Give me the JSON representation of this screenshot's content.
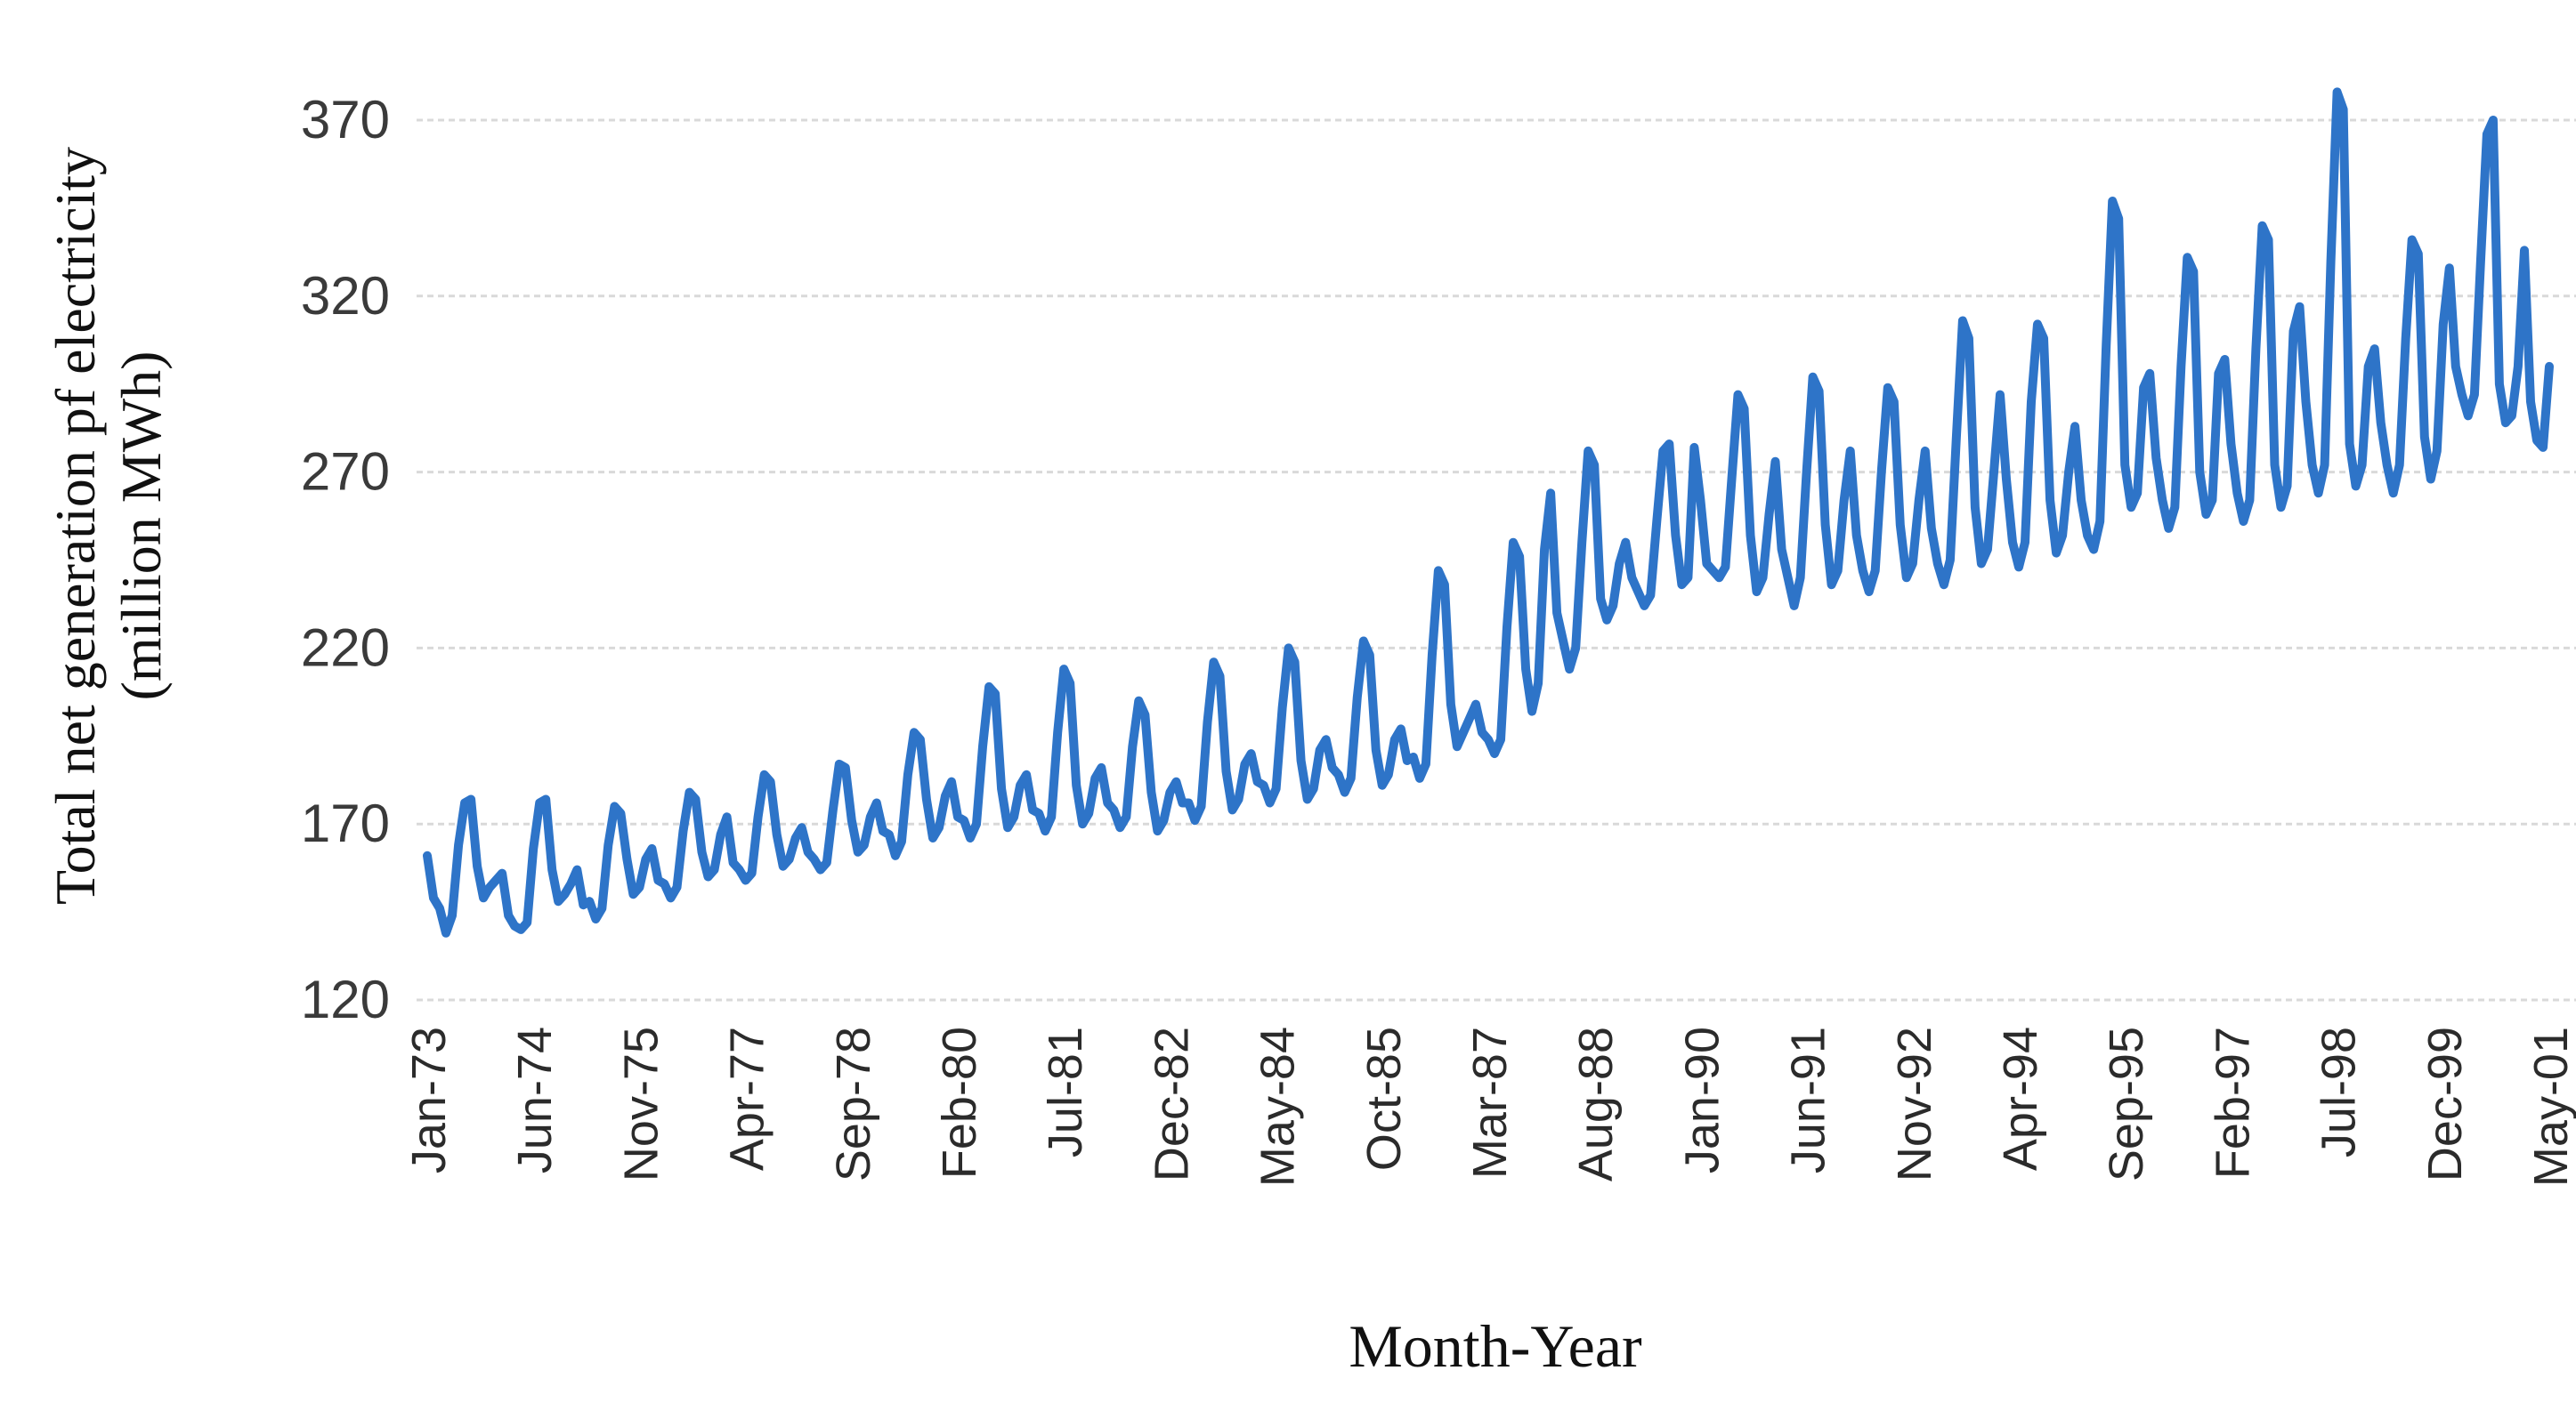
{
  "page": {
    "background_color": "#ffffff"
  },
  "style": {
    "line_color": "#2E74C8",
    "grid_color": "#D9D9D9",
    "y_tick_color": "#3a3a3a",
    "x_tick_color": "#2b2b2b",
    "title_color": "#111111"
  },
  "chart_data": {
    "type": "line",
    "title": "",
    "xlabel": "Month-Year",
    "ylabel": "Total net generation pf electricity (million MWh)",
    "ylabel_lines": [
      "Total net generation pf electricity",
      "(million MWh)"
    ],
    "legend": "none",
    "grid": "horizontal-dotted",
    "ylim": [
      120,
      380
    ],
    "y_ticks": [
      370,
      320,
      270,
      220,
      170,
      120
    ],
    "x_start": "Jan-1973",
    "x_end": "May-2001",
    "x_interval": "monthly",
    "x_tick_every_n_months": 17,
    "x_tick_labels": [
      "Jan-73",
      "Jun-74",
      "Nov-75",
      "Apr-77",
      "Sep-78",
      "Feb-80",
      "Jul-81",
      "Dec-82",
      "May-84",
      "Oct-85",
      "Mar-87",
      "Aug-88",
      "Jan-90",
      "Jun-91",
      "Nov-92",
      "Apr-94",
      "Sep-95",
      "Feb-97",
      "Jul-98",
      "Dec-99",
      "May-01"
    ],
    "series": [
      {
        "name": "Total net generation of electricity (million MWh)",
        "color": "#2E74C8",
        "values": [
          161,
          149,
          146,
          139,
          144,
          164,
          176,
          177,
          158,
          149,
          152,
          154,
          156,
          144,
          141,
          140,
          142,
          163,
          176,
          177,
          157,
          148,
          150,
          153,
          157,
          147,
          148,
          143,
          146,
          164,
          175,
          173,
          160,
          150,
          152,
          160,
          163,
          154,
          153,
          149,
          152,
          168,
          179,
          177,
          162,
          155,
          157,
          167,
          172,
          159,
          157,
          154,
          156,
          172,
          184,
          182,
          167,
          158,
          160,
          166,
          169,
          162,
          160,
          157,
          159,
          174,
          187,
          186,
          171,
          162,
          164,
          172,
          176,
          168,
          167,
          161,
          165,
          184,
          196,
          194,
          177,
          166,
          169,
          178,
          182,
          172,
          171,
          166,
          170,
          192,
          209,
          207,
          180,
          169,
          172,
          181,
          184,
          174,
          173,
          168,
          172,
          196,
          214,
          210,
          181,
          170,
          173,
          183,
          186,
          176,
          174,
          169,
          172,
          192,
          205,
          201,
          179,
          168,
          171,
          179,
          182,
          176,
          176,
          171,
          175,
          199,
          216,
          212,
          185,
          174,
          177,
          187,
          190,
          182,
          181,
          176,
          180,
          203,
          220,
          216,
          188,
          177,
          180,
          191,
          194,
          186,
          184,
          179,
          183,
          206,
          222,
          218,
          191,
          181,
          184,
          194,
          197,
          188,
          189,
          183,
          187,
          218,
          242,
          238,
          204,
          192,
          196,
          200,
          204,
          196,
          194,
          190,
          194,
          226,
          250,
          246,
          214,
          202,
          210,
          248,
          264,
          230,
          222,
          214,
          220,
          250,
          276,
          272,
          234,
          228,
          232,
          244,
          250,
          240,
          236,
          232,
          235,
          256,
          276,
          278,
          252,
          238,
          240,
          277,
          262,
          244,
          242,
          240,
          243,
          268,
          292,
          288,
          252,
          236,
          240,
          258,
          273,
          248,
          240,
          232,
          240,
          270,
          297,
          293,
          255,
          238,
          242,
          262,
          276,
          252,
          242,
          236,
          242,
          270,
          294,
          290,
          255,
          240,
          244,
          262,
          276,
          254,
          244,
          238,
          245,
          280,
          313,
          308,
          260,
          244,
          248,
          270,
          292,
          268,
          250,
          243,
          250,
          290,
          312,
          308,
          262,
          247,
          252,
          270,
          283,
          262,
          252,
          248,
          256,
          306,
          347,
          342,
          272,
          260,
          264,
          294,
          298,
          274,
          262,
          254,
          260,
          300,
          331,
          327,
          270,
          258,
          262,
          298,
          302,
          278,
          264,
          256,
          262,
          305,
          340,
          336,
          272,
          260,
          266,
          310,
          317,
          290,
          272,
          264,
          272,
          330,
          378,
          373,
          278,
          266,
          272,
          300,
          305,
          284,
          272,
          264,
          272,
          308,
          336,
          332,
          280,
          268,
          276,
          312,
          328,
          300,
          292,
          286,
          292,
          330,
          366,
          370,
          295,
          284,
          286,
          300,
          333,
          290,
          279,
          277,
          300
        ]
      }
    ]
  }
}
